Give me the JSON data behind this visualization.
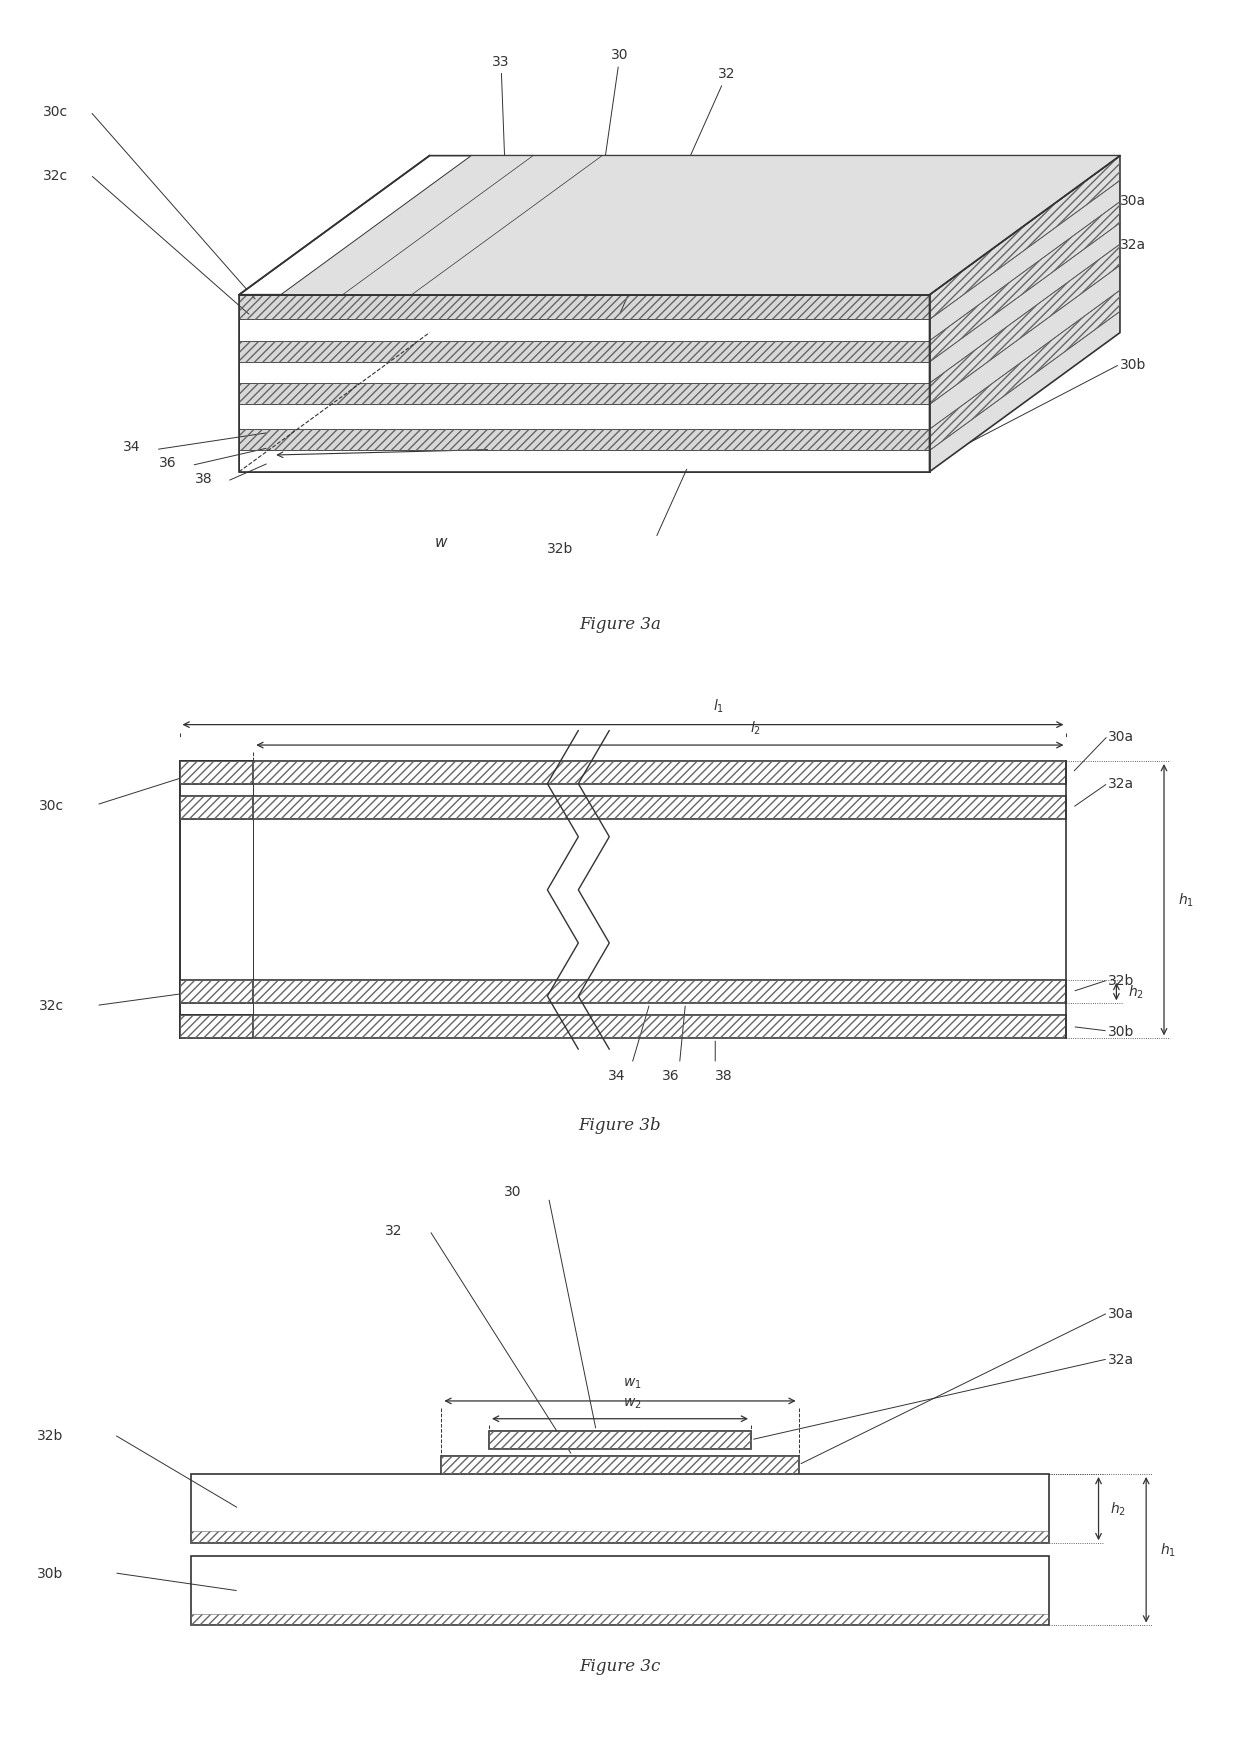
{
  "fig_title_a": "Figure 3a",
  "fig_title_b": "Figure 3b",
  "fig_title_c": "Figure 3c",
  "bg_color": "#ffffff",
  "line_color": "#333333",
  "label_fontsize": 10,
  "title_fontsize": 12
}
